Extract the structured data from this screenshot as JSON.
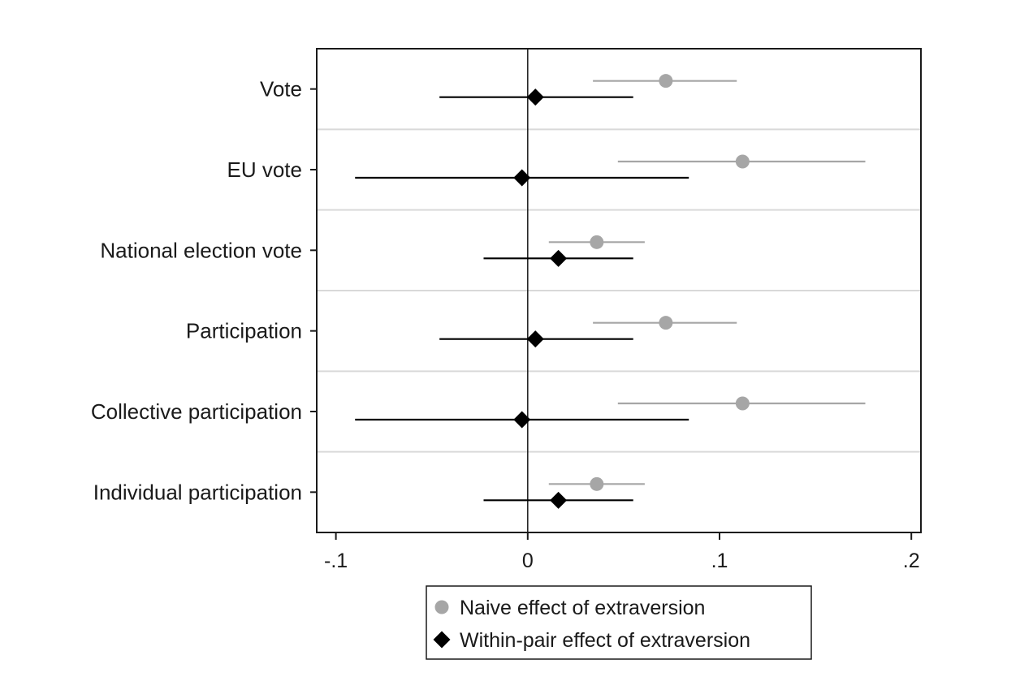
{
  "chart_data": {
    "type": "scatter",
    "subtype": "coefficient-plot",
    "orientation": "horizontal",
    "categories": [
      "Vote",
      "EU vote",
      "National election vote",
      "Participation",
      "Collective participation",
      "Individual participation"
    ],
    "series": [
      {
        "name": "Naive effect of extraversion",
        "marker": "circle",
        "color": "#a6a6a6",
        "estimates": [
          0.072,
          0.112,
          0.036,
          0.072,
          0.112,
          0.036
        ],
        "ci_low": [
          0.034,
          0.047,
          0.011,
          0.034,
          0.047,
          0.011
        ],
        "ci_high": [
          0.109,
          0.176,
          0.061,
          0.109,
          0.176,
          0.061
        ]
      },
      {
        "name": "Within-pair effect of extraversion",
        "marker": "diamond",
        "color": "#000000",
        "estimates": [
          0.004,
          -0.003,
          0.016,
          0.004,
          -0.003,
          0.016
        ],
        "ci_low": [
          -0.046,
          -0.09,
          -0.023,
          -0.046,
          -0.09,
          -0.023
        ],
        "ci_high": [
          0.055,
          0.084,
          0.055,
          0.055,
          0.084,
          0.055
        ]
      }
    ],
    "xlim": [
      -0.11,
      0.205
    ],
    "xticks": [
      -0.1,
      0,
      0.1,
      0.2
    ],
    "xtick_labels": [
      "-.1",
      "0",
      ".1",
      ".2"
    ],
    "reference_line_x": 0,
    "grid": "horizontal separators between categories",
    "legend_position": "bottom",
    "title": "",
    "xlabel": "",
    "ylabel": ""
  }
}
